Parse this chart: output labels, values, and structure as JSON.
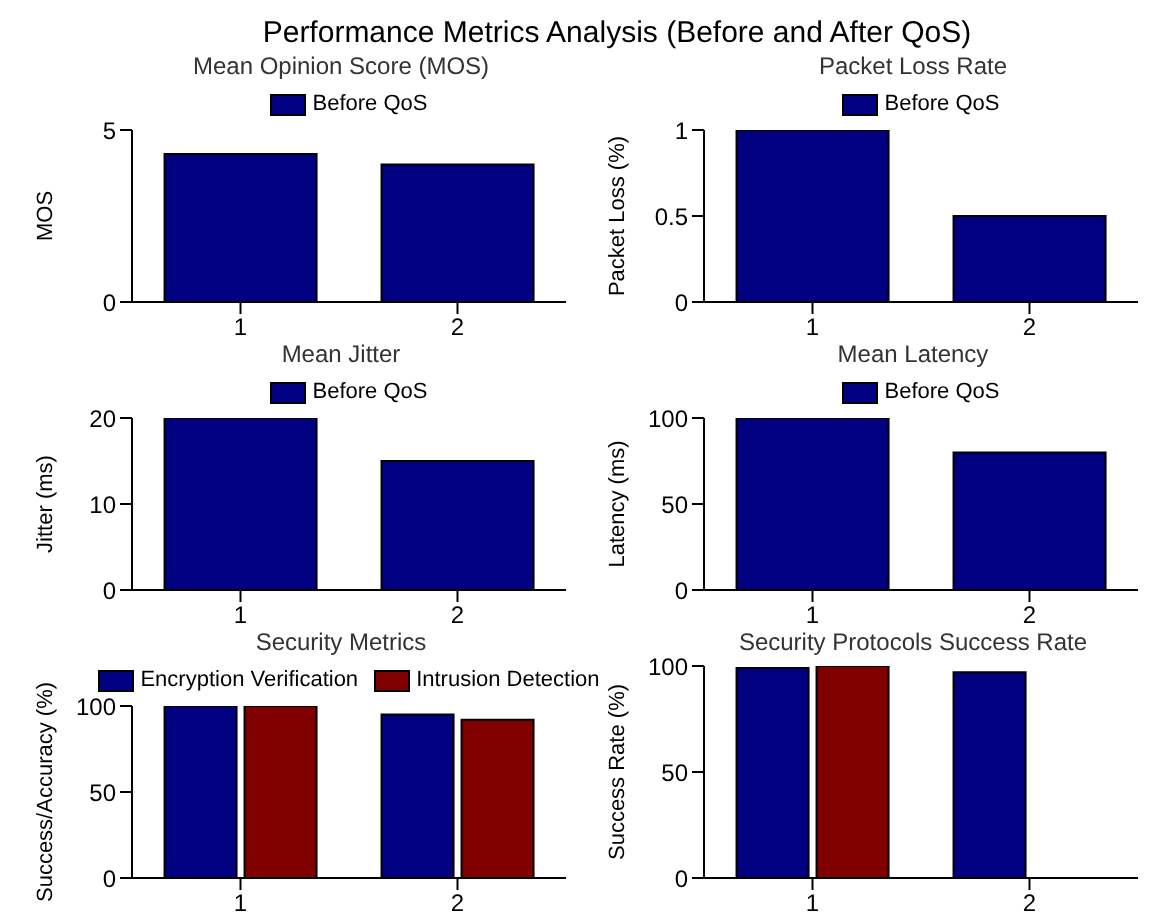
{
  "chart_data": [
    {
      "type": "bar",
      "title": "Performance Metrics Analysis (Before and After QoS)",
      "subtitle": "Mean Opinion Score (MOS)",
      "ylabel": "MOS",
      "categories": [
        "1",
        "2"
      ],
      "series": [
        {
          "name": "Before QoS",
          "color": "#000080",
          "values": [
            4.3,
            4.0
          ]
        }
      ],
      "ylim": [
        0,
        5
      ],
      "yticks": [
        0,
        5
      ],
      "legend": "top",
      "grid": false
    },
    {
      "type": "bar",
      "title": "Packet Loss Rate",
      "ylabel": "Packet Loss (%)",
      "categories": [
        "1",
        "2"
      ],
      "series": [
        {
          "name": "Before QoS",
          "color": "#000080",
          "values": [
            1,
            0.5
          ]
        }
      ],
      "ylim": [
        0,
        1
      ],
      "yticks": [
        0,
        0.5,
        1
      ],
      "legend": "top",
      "grid": false
    },
    {
      "type": "bar",
      "title": "Mean Jitter",
      "ylabel": "Jitter (ms)",
      "categories": [
        "1",
        "2"
      ],
      "series": [
        {
          "name": "Before QoS",
          "color": "#000080",
          "values": [
            20,
            15
          ]
        }
      ],
      "ylim": [
        0,
        20
      ],
      "yticks": [
        0,
        10,
        20
      ],
      "legend": "top",
      "grid": false
    },
    {
      "type": "bar",
      "title": "Mean Latency",
      "ylabel": "Latency (ms)",
      "categories": [
        "1",
        "2"
      ],
      "series": [
        {
          "name": "Before QoS",
          "color": "#000080",
          "values": [
            100,
            80
          ]
        }
      ],
      "ylim": [
        0,
        100
      ],
      "yticks": [
        0,
        50,
        100
      ],
      "legend": "top",
      "grid": false
    },
    {
      "type": "bar",
      "title": "Security Metrics",
      "ylabel": "Success/Accuracy (%)",
      "categories": [
        "1",
        "2"
      ],
      "series": [
        {
          "name": "Encryption Verification",
          "color": "#000080",
          "values": [
            100,
            95
          ]
        },
        {
          "name": "Intrusion Detection",
          "color": "#800000",
          "values": [
            100,
            92
          ]
        }
      ],
      "ylim": [
        0,
        100
      ],
      "yticks": [
        0,
        50,
        100
      ],
      "legend": "top",
      "grid": false
    },
    {
      "type": "bar",
      "title": "Security Protocols Success Rate",
      "ylabel": "Success Rate (%)",
      "categories": [
        "1",
        "2"
      ],
      "series": [
        {
          "color": "#000080",
          "values": [
            99,
            97
          ]
        },
        {
          "color": "#800000",
          "values": [
            100,
            0
          ]
        }
      ],
      "ylim": [
        0,
        100
      ],
      "yticks": [
        0,
        50,
        100
      ],
      "grid": false
    }
  ]
}
